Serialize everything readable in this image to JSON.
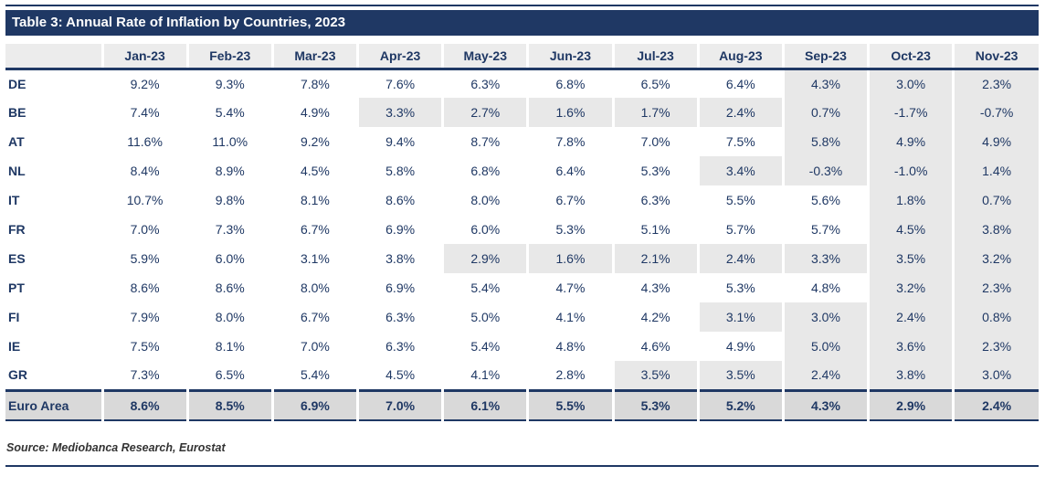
{
  "table": {
    "title": "Table 3: Annual Rate of Inflation by Countries, 2023",
    "source": "Source: Mediobanca Research, Eurostat"
  },
  "colors": {
    "navy": "#1F3864",
    "title_text": "#FFFFFF",
    "header_fill": "#ECECEC",
    "cell_shade": "#E8E8E8",
    "total_row_fill": "#D9D9D9",
    "source_text": "#333333"
  },
  "chart_data": {
    "type": "table",
    "title": "Table 3: Annual Rate of Inflation by Countries, 2023",
    "columns": [
      "",
      "Jan-23",
      "Feb-23",
      "Mar-23",
      "Apr-23",
      "May-23",
      "Jun-23",
      "Jul-23",
      "Aug-23",
      "Sep-23",
      "Oct-23",
      "Nov-23"
    ],
    "rows": [
      {
        "label": "DE",
        "values": [
          "9.2%",
          "9.3%",
          "7.8%",
          "7.6%",
          "6.3%",
          "6.8%",
          "6.5%",
          "6.4%",
          "4.3%",
          "3.0%",
          "2.3%"
        ],
        "shade_start": 8
      },
      {
        "label": "BE",
        "values": [
          "7.4%",
          "5.4%",
          "4.9%",
          "3.3%",
          "2.7%",
          "1.6%",
          "1.7%",
          "2.4%",
          "0.7%",
          "-1.7%",
          "-0.7%"
        ],
        "shade_start": 3
      },
      {
        "label": "AT",
        "values": [
          "11.6%",
          "11.0%",
          "9.2%",
          "9.4%",
          "8.7%",
          "7.8%",
          "7.0%",
          "7.5%",
          "5.8%",
          "4.9%",
          "4.9%"
        ],
        "shade_start": 8
      },
      {
        "label": "NL",
        "values": [
          "8.4%",
          "8.9%",
          "4.5%",
          "5.8%",
          "6.8%",
          "6.4%",
          "5.3%",
          "3.4%",
          "-0.3%",
          "-1.0%",
          "1.4%"
        ],
        "shade_start": 7
      },
      {
        "label": "IT",
        "values": [
          "10.7%",
          "9.8%",
          "8.1%",
          "8.6%",
          "8.0%",
          "6.7%",
          "6.3%",
          "5.5%",
          "5.6%",
          "1.8%",
          "0.7%"
        ],
        "shade_start": 9
      },
      {
        "label": "FR",
        "values": [
          "7.0%",
          "7.3%",
          "6.7%",
          "6.9%",
          "6.0%",
          "5.3%",
          "5.1%",
          "5.7%",
          "5.7%",
          "4.5%",
          "3.8%"
        ],
        "shade_start": 9
      },
      {
        "label": "ES",
        "values": [
          "5.9%",
          "6.0%",
          "3.1%",
          "3.8%",
          "2.9%",
          "1.6%",
          "2.1%",
          "2.4%",
          "3.3%",
          "3.5%",
          "3.2%"
        ],
        "shade_start": 4
      },
      {
        "label": "PT",
        "values": [
          "8.6%",
          "8.6%",
          "8.0%",
          "6.9%",
          "5.4%",
          "4.7%",
          "4.3%",
          "5.3%",
          "4.8%",
          "3.2%",
          "2.3%"
        ],
        "shade_start": 9
      },
      {
        "label": "FI",
        "values": [
          "7.9%",
          "8.0%",
          "6.7%",
          "6.3%",
          "5.0%",
          "4.1%",
          "4.2%",
          "3.1%",
          "3.0%",
          "2.4%",
          "0.8%"
        ],
        "shade_start": 7
      },
      {
        "label": "IE",
        "values": [
          "7.5%",
          "8.1%",
          "7.0%",
          "6.3%",
          "5.4%",
          "4.8%",
          "4.6%",
          "4.9%",
          "5.0%",
          "3.6%",
          "2.3%"
        ],
        "shade_start": 8
      },
      {
        "label": "GR",
        "values": [
          "7.3%",
          "6.5%",
          "5.4%",
          "4.5%",
          "4.1%",
          "2.8%",
          "3.5%",
          "3.5%",
          "2.4%",
          "3.8%",
          "3.0%"
        ],
        "shade_start": 6
      }
    ],
    "total_row": {
      "label": "Euro Area",
      "values": [
        "8.6%",
        "8.5%",
        "6.9%",
        "7.0%",
        "6.1%",
        "5.5%",
        "5.3%",
        "5.2%",
        "4.3%",
        "2.9%",
        "2.4%"
      ]
    },
    "source": "Source: Mediobanca Research, Eurostat",
    "shading_note": "shade_start = 0-based index into values from which cells are shaded grey through end of row"
  }
}
